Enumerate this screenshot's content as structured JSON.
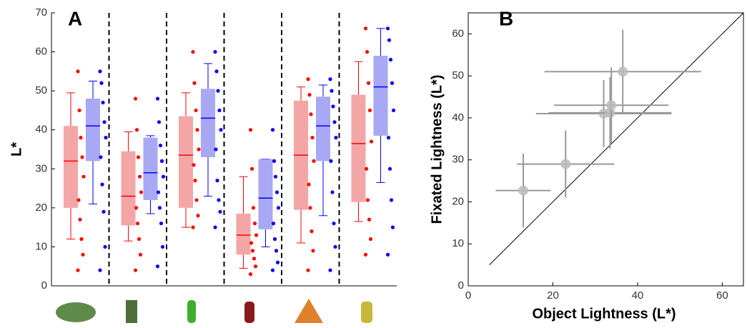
{
  "chart_data": [
    {
      "type": "box",
      "panel_label": "A",
      "ylabel": "L*",
      "ylim": [
        0,
        70
      ],
      "yticks": [
        0,
        10,
        20,
        30,
        40,
        50,
        60,
        70
      ],
      "series": [
        {
          "color": "#ff0000",
          "fill": "#f4a6a6",
          "boxes": [
            {
              "whislo": 12,
              "q1": 20,
              "med": 32,
              "q3": 41,
              "whishi": 49.5
            },
            {
              "whislo": 11.5,
              "q1": 15.5,
              "med": 23,
              "q3": 34.5,
              "whishi": 39.5
            },
            {
              "whislo": 15,
              "q1": 20,
              "med": 33.5,
              "q3": 43.5,
              "whishi": 49.5
            },
            {
              "whislo": 4.5,
              "q1": 8,
              "med": 13,
              "q3": 18.5,
              "whishi": 28
            },
            {
              "whislo": 11,
              "q1": 19.5,
              "med": 33.5,
              "q3": 47.5,
              "whishi": 51
            },
            {
              "whislo": 16.5,
              "q1": 21.5,
              "med": 36.5,
              "q3": 49,
              "whishi": 57.5
            }
          ],
          "points": [
            [
              4,
              8,
              12,
              17,
              22,
              28,
              33,
              38,
              45,
              55
            ],
            [
              4,
              8,
              12,
              16,
              20,
              24,
              28,
              33,
              40,
              48
            ],
            [
              15,
              18,
              22,
              27,
              31,
              35,
              40,
              45,
              52,
              60
            ],
            [
              3,
              5,
              7,
              9,
              11,
              13,
              16,
              20,
              30,
              40
            ],
            [
              4,
              9,
              14,
              20,
              26,
              32,
              38,
              44,
              49,
              53
            ],
            [
              8,
              12,
              17,
              22,
              30,
              37,
              45,
              52,
              60,
              66
            ]
          ]
        },
        {
          "color": "#0000ff",
          "fill": "#a8a8f4",
          "boxes": [
            {
              "whislo": 21,
              "q1": 32,
              "med": 41,
              "q3": 48,
              "whishi": 52.5
            },
            {
              "whislo": 18.5,
              "q1": 22,
              "med": 29,
              "q3": 38,
              "whishi": 38.5
            },
            {
              "whislo": 23,
              "q1": 33,
              "med": 43,
              "q3": 50.5,
              "whishi": 57
            },
            {
              "whislo": 10,
              "q1": 14.5,
              "med": 22.5,
              "q3": 32.5,
              "whishi": 32.5
            },
            {
              "whislo": 18,
              "q1": 32,
              "med": 41,
              "q3": 48.5,
              "whishi": 51.5
            },
            {
              "whislo": 26.5,
              "q1": 38.5,
              "med": 51,
              "q3": 59,
              "whishi": 66
            }
          ],
          "points": [
            [
              4,
              10,
              19,
              26,
              33,
              38,
              42,
              47,
              52,
              55
            ],
            [
              5,
              10,
              16,
              20,
              24,
              28,
              32,
              36,
              42,
              48
            ],
            [
              15,
              19,
              22,
              27,
              35,
              40,
              45,
              50,
              55,
              60
            ],
            [
              4,
              6,
              9,
              12,
              16,
              20,
              24,
              28,
              32,
              40
            ],
            [
              4,
              10,
              16,
              24,
              32,
              38,
              42,
              46,
              50,
              53
            ],
            [
              8,
              15,
              22,
              30,
              38,
              45,
              52,
              58,
              63,
              66
            ]
          ]
        }
      ]
    },
    {
      "type": "scatter",
      "panel_label": "B",
      "xlabel": "Object Lightness (L*)",
      "ylabel": "Fixated Lightness (L*)",
      "xlim": [
        0,
        65
      ],
      "ylim": [
        0,
        65
      ],
      "xticks": [
        0,
        20,
        40,
        60
      ],
      "yticks": [
        0,
        10,
        20,
        30,
        40,
        50,
        60
      ],
      "identity_line": [
        5,
        65
      ],
      "series": [
        {
          "color": "#999999",
          "x": [
            13,
            23,
            32,
            33.5,
            33.8,
            36.5
          ],
          "values": [
            22.7,
            29,
            41,
            41.2,
            43,
            51
          ],
          "xerr": [
            6.5,
            11.5,
            16,
            14.5,
            13.5,
            18.5
          ],
          "yerr": [
            8.8,
            8,
            8,
            8.5,
            9,
            10
          ]
        }
      ]
    }
  ]
}
